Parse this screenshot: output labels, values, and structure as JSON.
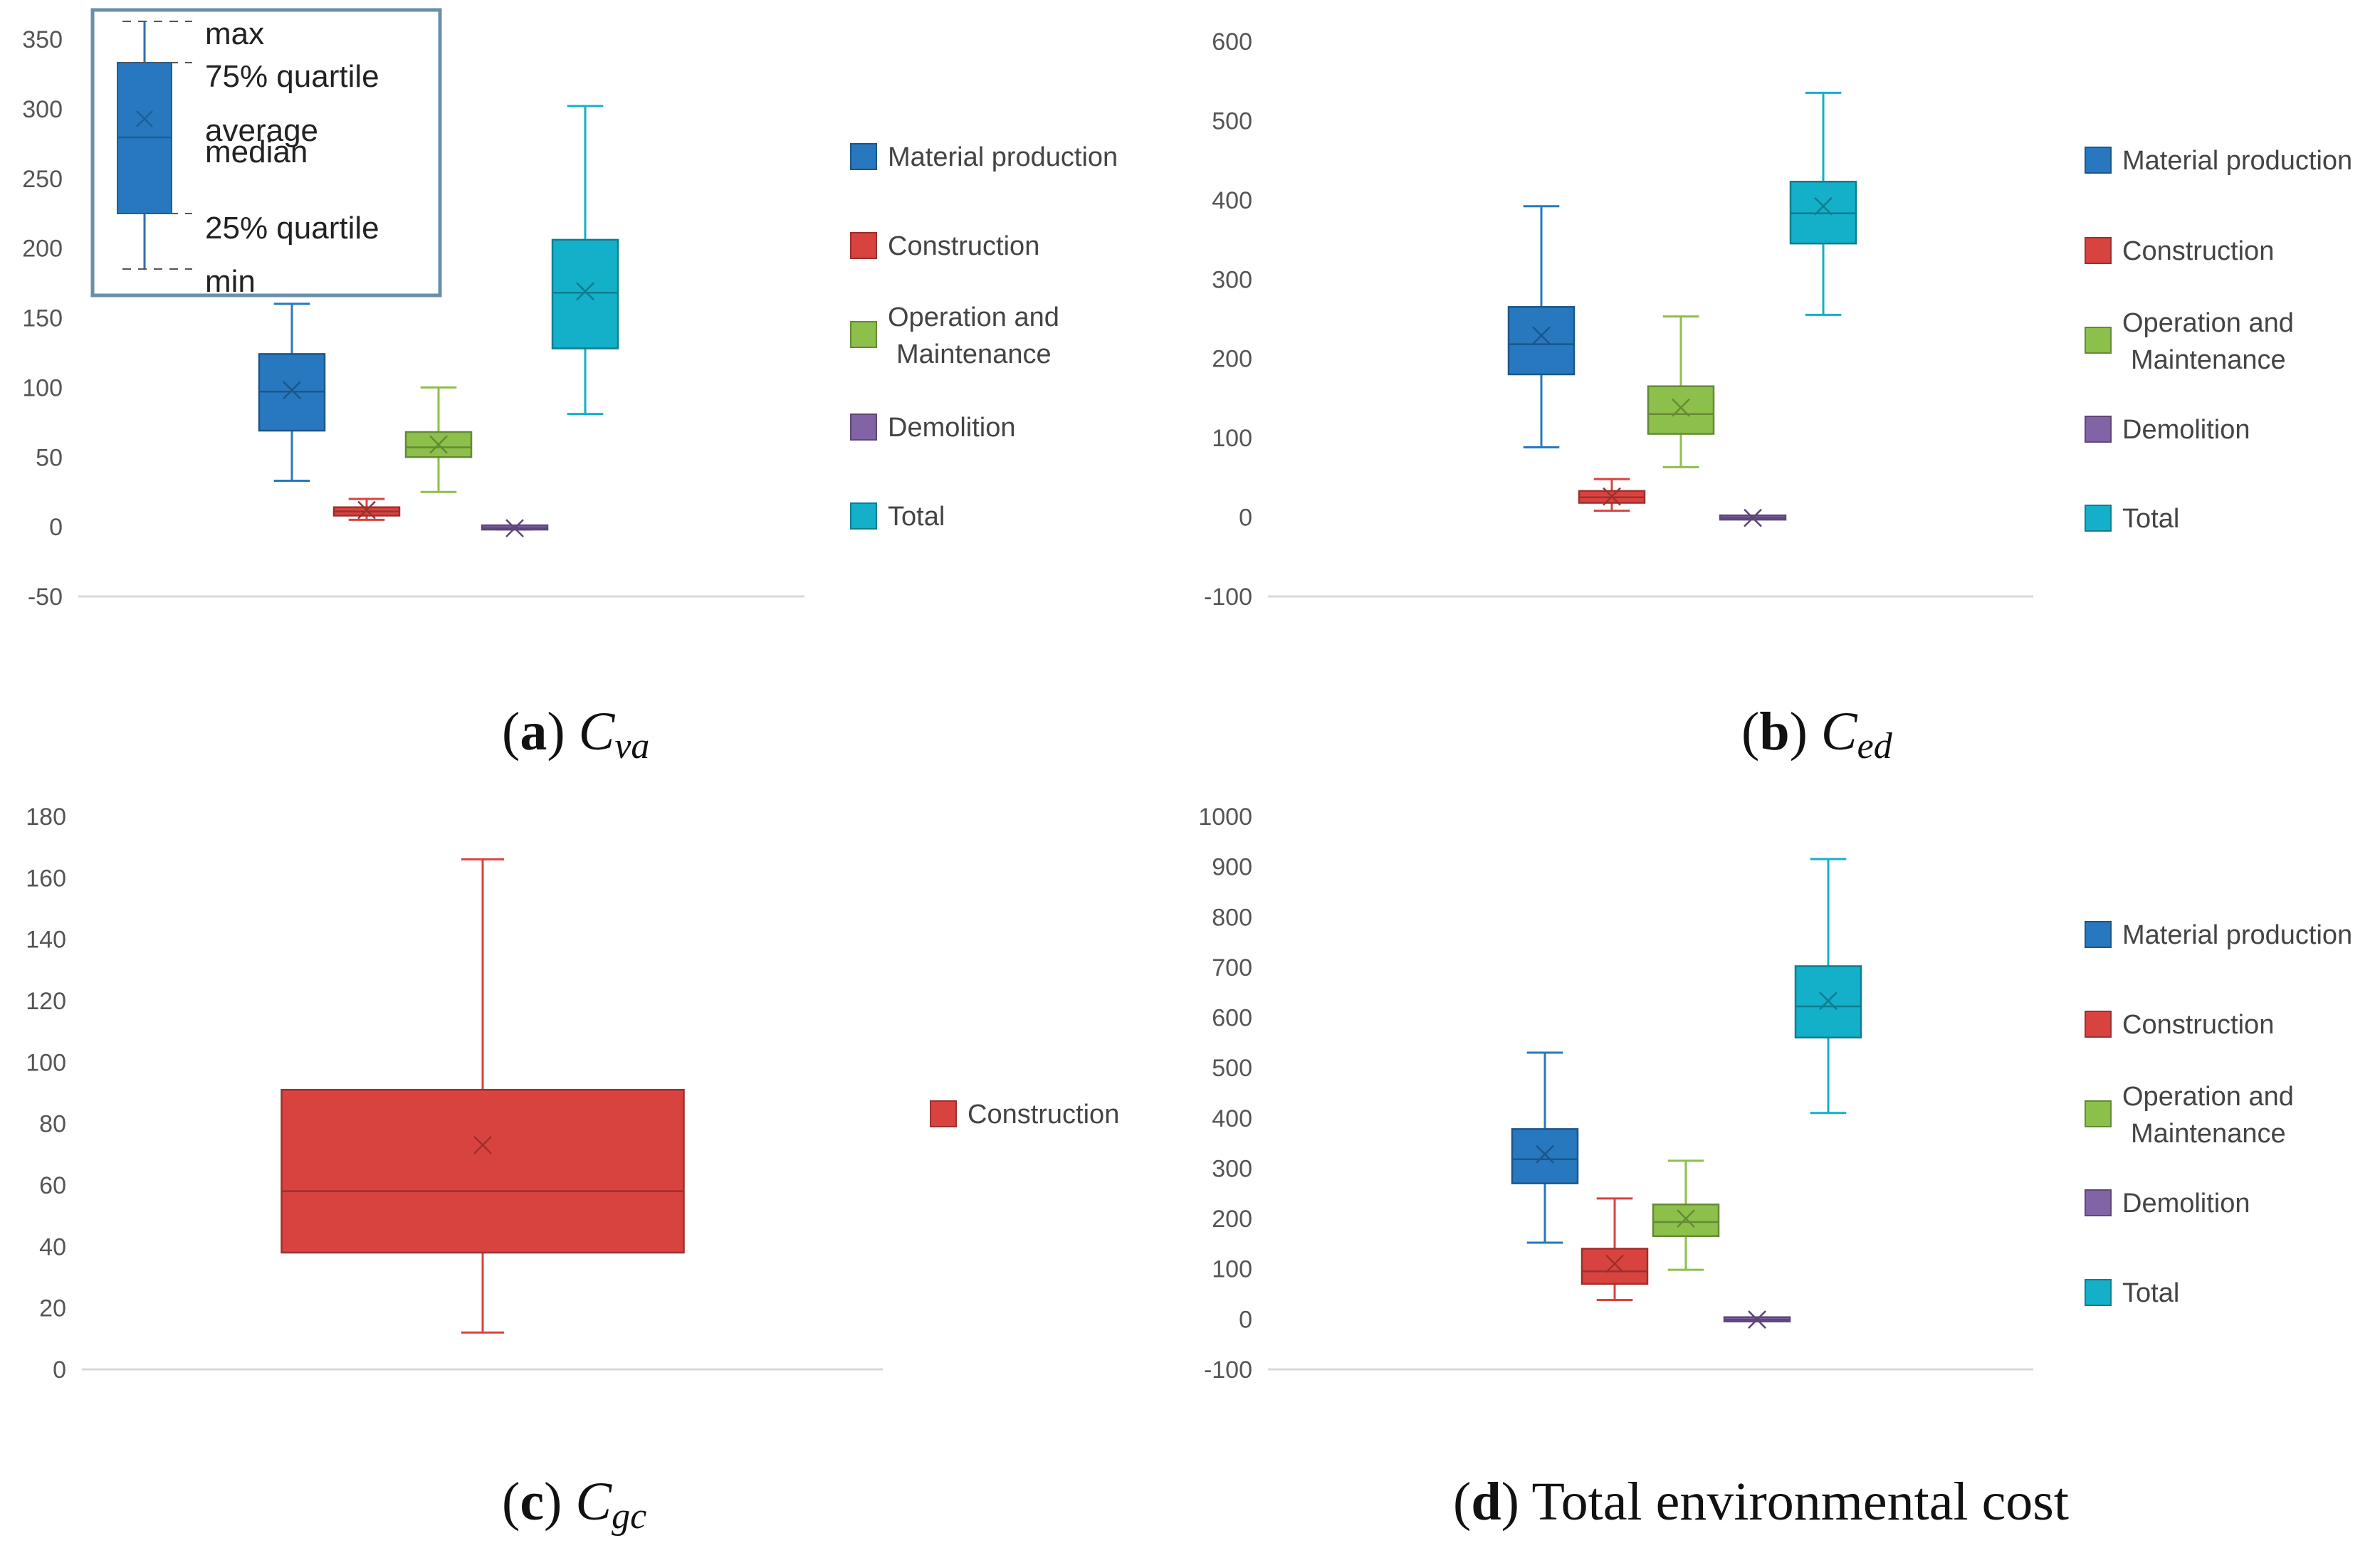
{
  "colors": {
    "Material production": "#2778be",
    "Construction": "#d9433f",
    "Operation and Maintenance": "#8cc04a",
    "Demolition": "#8163a6",
    "Total": "#14afc9"
  },
  "key": {
    "max": "max",
    "q3": "75% quartile",
    "average": "average",
    "median": "median",
    "q1": "25% quartile",
    "min": "min"
  },
  "chart_data": [
    {
      "id": "a",
      "type": "box",
      "caption_letter": "a",
      "caption_symbol": "C",
      "caption_sub": "va",
      "caption_text": "",
      "yticks": [
        "350",
        "300",
        "250",
        "200",
        "150",
        "100",
        "50",
        "0",
        "-50"
      ],
      "ylim": [
        -50,
        350
      ],
      "legend": [
        "Material production",
        "Construction",
        "Operation and Maintenance",
        "Demolition",
        "Total"
      ],
      "series": [
        {
          "name": "Material production",
          "min": 33,
          "q1": 69,
          "median": 97,
          "q3": 124,
          "max": 160,
          "mean": 98
        },
        {
          "name": "Construction",
          "min": 5,
          "q1": 8,
          "median": 11,
          "q3": 14,
          "max": 20,
          "mean": 12
        },
        {
          "name": "Operation and Maintenance",
          "min": 25,
          "q1": 50,
          "median": 57,
          "q3": 68,
          "max": 100,
          "mean": 59
        },
        {
          "name": "Demolition",
          "min": -2,
          "q1": -1,
          "median": -1,
          "q3": 0,
          "max": 0,
          "mean": -1
        },
        {
          "name": "Total",
          "min": 81,
          "q1": 128,
          "median": 168,
          "q3": 206,
          "max": 302,
          "mean": 169
        }
      ]
    },
    {
      "id": "b",
      "type": "box",
      "caption_letter": "b",
      "caption_symbol": "C",
      "caption_sub": "ed",
      "caption_text": "",
      "yticks": [
        "600",
        "500",
        "400",
        "300",
        "200",
        "100",
        "0",
        "-100"
      ],
      "ylim": [
        -100,
        600
      ],
      "legend": [
        "Material production",
        "Construction",
        "Operation and Maintenance",
        "Demolition",
        "Total"
      ],
      "series": [
        {
          "name": "Material production",
          "min": 88,
          "q1": 180,
          "median": 218,
          "q3": 265,
          "max": 392,
          "mean": 229
        },
        {
          "name": "Construction",
          "min": 8,
          "q1": 18,
          "median": 25,
          "q3": 33,
          "max": 48,
          "mean": 26
        },
        {
          "name": "Operation and Maintenance",
          "min": 63,
          "q1": 105,
          "median": 130,
          "q3": 165,
          "max": 253,
          "mean": 138
        },
        {
          "name": "Demolition",
          "min": -2,
          "q1": -1,
          "median": -1,
          "q3": 0,
          "max": 0,
          "mean": -1
        },
        {
          "name": "Total",
          "min": 255,
          "q1": 345,
          "median": 383,
          "q3": 423,
          "max": 535,
          "mean": 392
        }
      ]
    },
    {
      "id": "c",
      "type": "box",
      "caption_letter": "c",
      "caption_symbol": "C",
      "caption_sub": "gc",
      "caption_text": "",
      "yticks": [
        "180",
        "160",
        "140",
        "120",
        "100",
        "80",
        "60",
        "40",
        "20",
        "0"
      ],
      "ylim": [
        0,
        180
      ],
      "legend": [
        "Construction"
      ],
      "series": [
        {
          "name": "Construction",
          "min": 12,
          "q1": 38,
          "median": 58,
          "q3": 91,
          "max": 166,
          "mean": 73
        }
      ]
    },
    {
      "id": "d",
      "type": "box",
      "caption_letter": "d",
      "caption_symbol": "",
      "caption_sub": "",
      "caption_text": "Total environmental cost",
      "yticks": [
        "1000",
        "900",
        "800",
        "700",
        "600",
        "500",
        "400",
        "300",
        "200",
        "100",
        "0",
        "-100"
      ],
      "ylim": [
        -100,
        1000
      ],
      "legend": [
        "Material production",
        "Construction",
        "Operation and Maintenance",
        "Demolition",
        "Total"
      ],
      "series": [
        {
          "name": "Material production",
          "min": 152,
          "q1": 270,
          "median": 318,
          "q3": 378,
          "max": 530,
          "mean": 328
        },
        {
          "name": "Construction",
          "min": 38,
          "q1": 70,
          "median": 95,
          "q3": 140,
          "max": 240,
          "mean": 110
        },
        {
          "name": "Operation and Maintenance",
          "min": 98,
          "q1": 165,
          "median": 193,
          "q3": 228,
          "max": 315,
          "mean": 200
        },
        {
          "name": "Demolition",
          "min": -2,
          "q1": -1,
          "median": -1,
          "q3": 0,
          "max": 0,
          "mean": -1
        },
        {
          "name": "Total",
          "min": 410,
          "q1": 560,
          "median": 622,
          "q3": 702,
          "max": 915,
          "mean": 633
        }
      ]
    }
  ]
}
